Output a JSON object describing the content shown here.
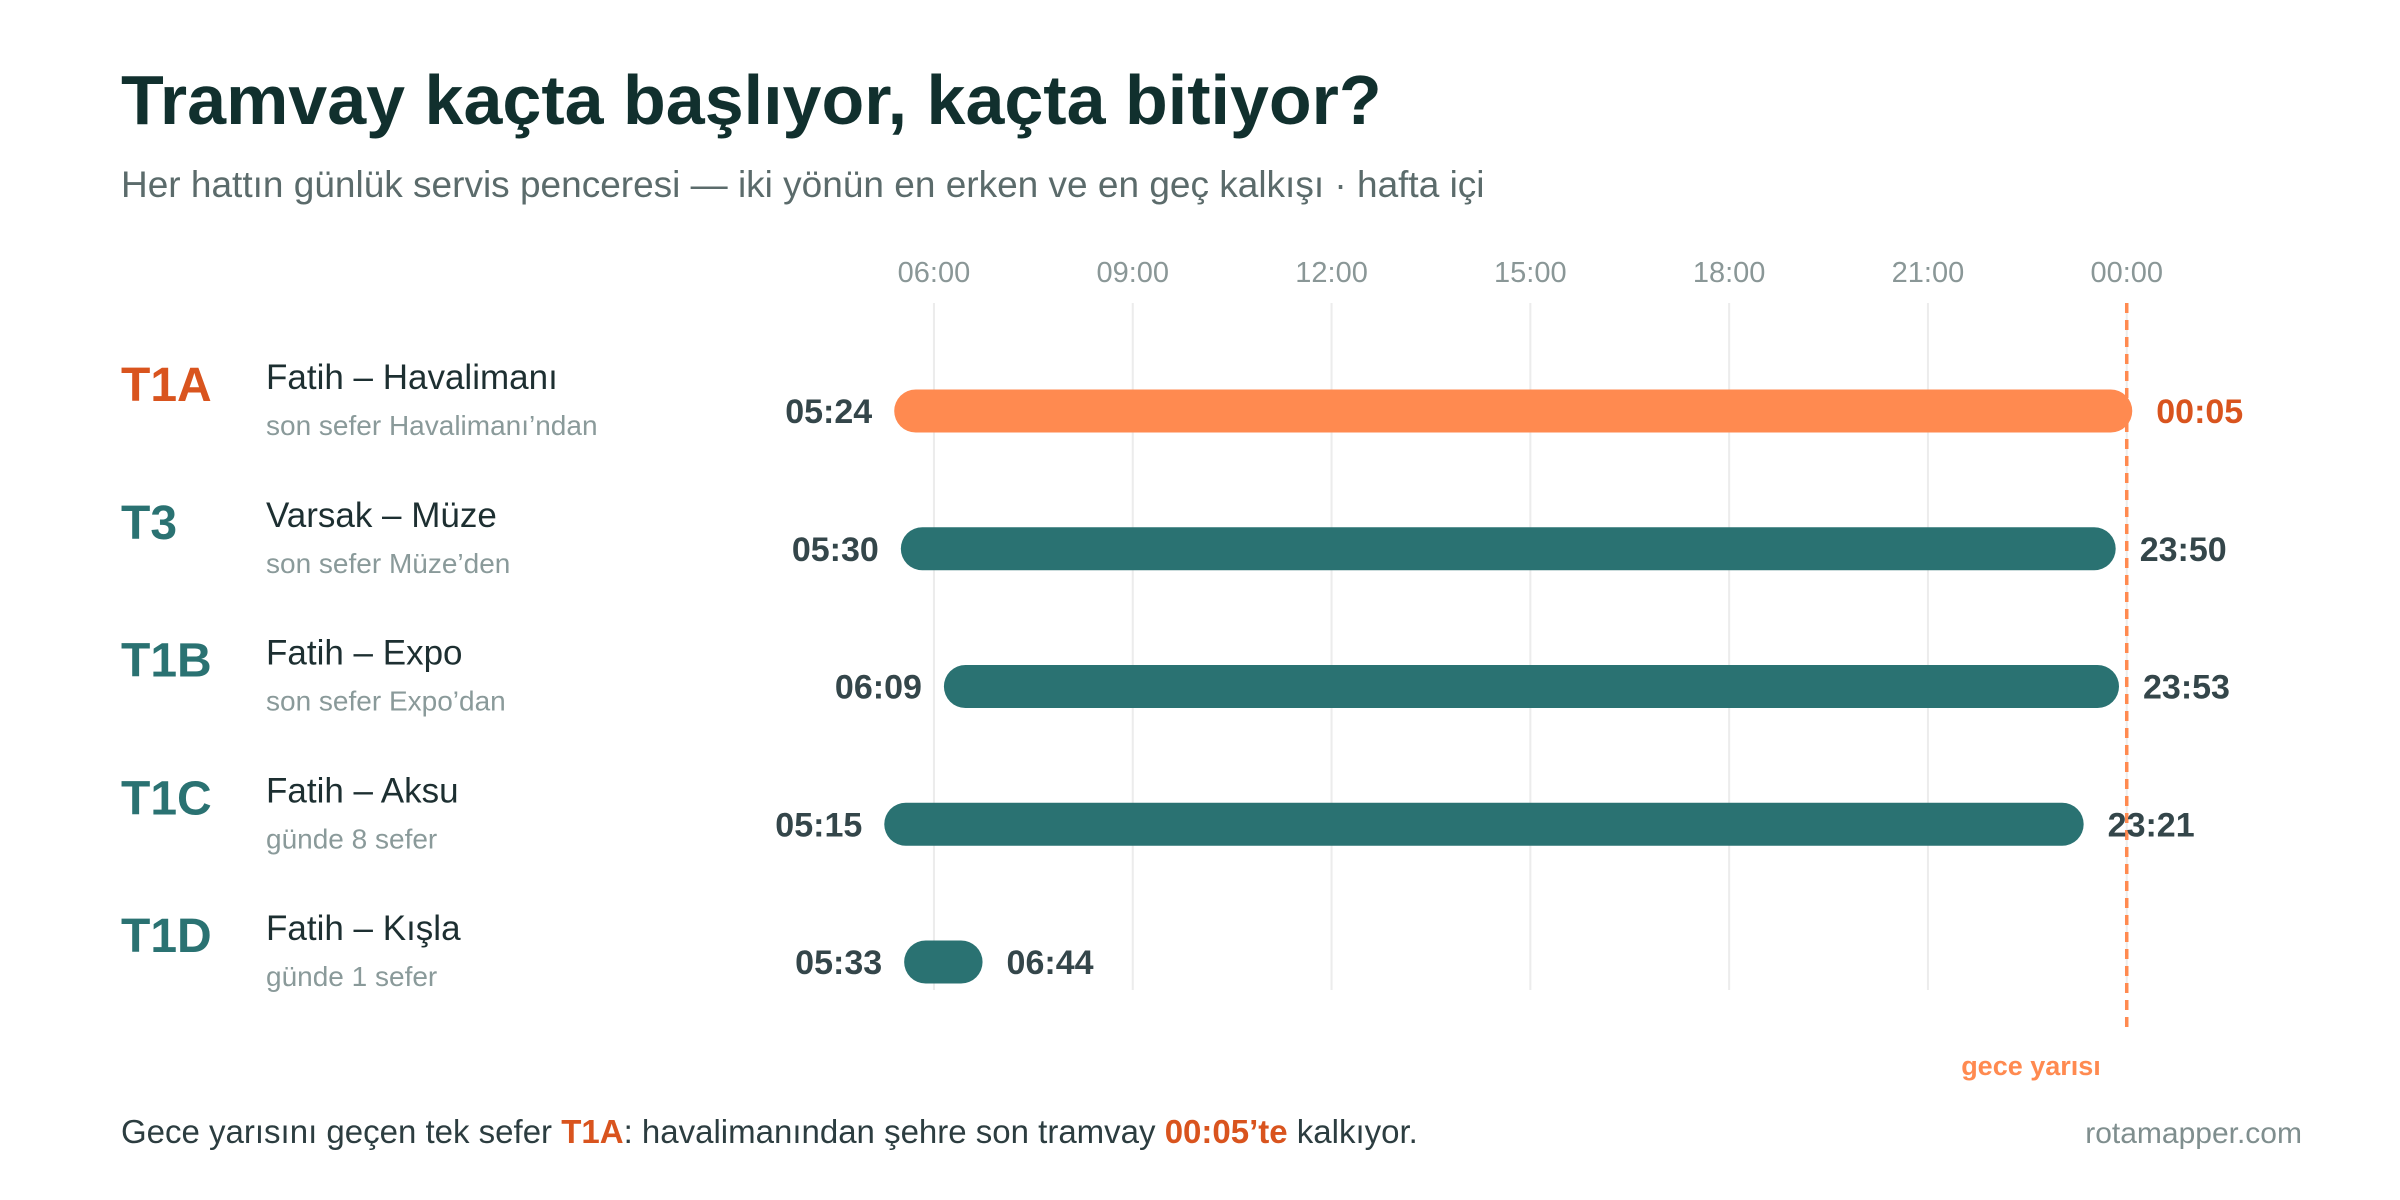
{
  "chart_data": {
    "type": "range_bar",
    "title": "Tramvay kaçta başlıyor, kaçta bitiyor?",
    "subtitle": "Her hattın günlük servis penceresi — iki yönün en erken ve en geç kalkışı · hafta içi",
    "categories": [
      "T1A",
      "T3",
      "T1B",
      "T1C",
      "T1D"
    ],
    "category_colors": [
      "#d9541e",
      "#2a7272",
      "#2a7272",
      "#2a7272",
      "#2a7272"
    ],
    "route_names": [
      "Fatih – Havalimanı",
      "Varsak – Müze",
      "Fatih – Expo",
      "Fatih – Aksu",
      "Fatih – Kışla"
    ],
    "notes": [
      "son sefer Havalimanı’ndan",
      "son sefer Müze’den",
      "son sefer Expo’dan",
      "günde 8 sefer",
      "günde 1 sefer"
    ],
    "bar_colors": [
      "#ff8a50",
      "#2a7272",
      "#2a7272",
      "#2a7272",
      "#2a7272"
    ],
    "series": [
      {
        "values": [
          324,
          330,
          369,
          315,
          333
        ],
        "value_labels": [
          "05:24",
          "05:30",
          "06:09",
          "05:15",
          "05:33"
        ],
        "label_colors": [
          "#34464a",
          "#34464a",
          "#34464a",
          "#34464a",
          "#34464a"
        ]
      },
      {
        "values": [
          1445,
          1430,
          1433,
          1401,
          404
        ],
        "value_labels": [
          "00:05",
          "23:50",
          "23:53",
          "23:21",
          "06:44"
        ],
        "label_colors": [
          "#d9541e",
          "#34464a",
          "#34464a",
          "#34464a",
          "#34464a"
        ]
      }
    ],
    "xlim": [
      300,
      1500
    ],
    "xticks": [
      {
        "value": 360,
        "label": "06:00"
      },
      {
        "value": 540,
        "label": "09:00"
      },
      {
        "value": 720,
        "label": "12:00"
      },
      {
        "value": 900,
        "label": "15:00"
      },
      {
        "value": 1080,
        "label": "18:00"
      },
      {
        "value": 1260,
        "label": "21:00"
      },
      {
        "value": 1440,
        "label": "00:00"
      }
    ],
    "grid": true,
    "reference_line": {
      "value": 1440,
      "label": "gece yarısı",
      "color": "#ff8a50"
    },
    "footnote": [
      {
        "text": "Gece yarısını geçen tek sefer "
      },
      {
        "text": "T1A",
        "color": "#d9541e"
      },
      {
        "text": ": havalimanından şehre son tramvay "
      },
      {
        "text": "00:05’te",
        "color": "#d9541e"
      },
      {
        "text": " kalkıyor."
      }
    ],
    "source": "rotamapper.com"
  }
}
